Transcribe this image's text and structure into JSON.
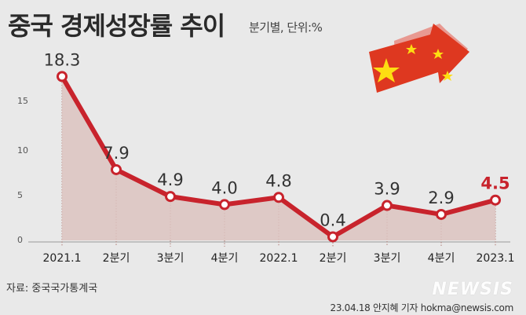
{
  "header": {
    "title": "중국 경제성장률 추이",
    "subtitle": "분기별, 단위:%"
  },
  "footer": {
    "source": "자료: 중국국가통계국",
    "credit": "23.04.18 안지혜 기자 hokma@newsis.com",
    "logo": "NEWSIS"
  },
  "colors": {
    "line": "#c8232c",
    "area": "#dcc3bf",
    "highlight": "#c8232c",
    "flag_red": "#de2910",
    "flag_star": "#ffde00"
  },
  "chart_data": {
    "type": "area",
    "title": "중국 경제성장률 추이",
    "subtitle": "분기별, 단위:%",
    "categories": [
      "2021.1",
      "2분기",
      "3분기",
      "4분기",
      "2022.1",
      "2분기",
      "3분기",
      "4분기",
      "2023.1"
    ],
    "values": [
      18.3,
      7.9,
      4.9,
      4.0,
      4.8,
      0.4,
      3.9,
      2.9,
      4.5
    ],
    "value_labels": [
      "18.3",
      "7.9",
      "4.9",
      "4.0",
      "4.8",
      "0.4",
      "3.9",
      "2.9",
      "4.5"
    ],
    "highlight_index": 8,
    "yticks": [
      "0",
      "5",
      "10",
      "15"
    ],
    "ylim": [
      0,
      20
    ],
    "grid": false,
    "legend": "none"
  }
}
